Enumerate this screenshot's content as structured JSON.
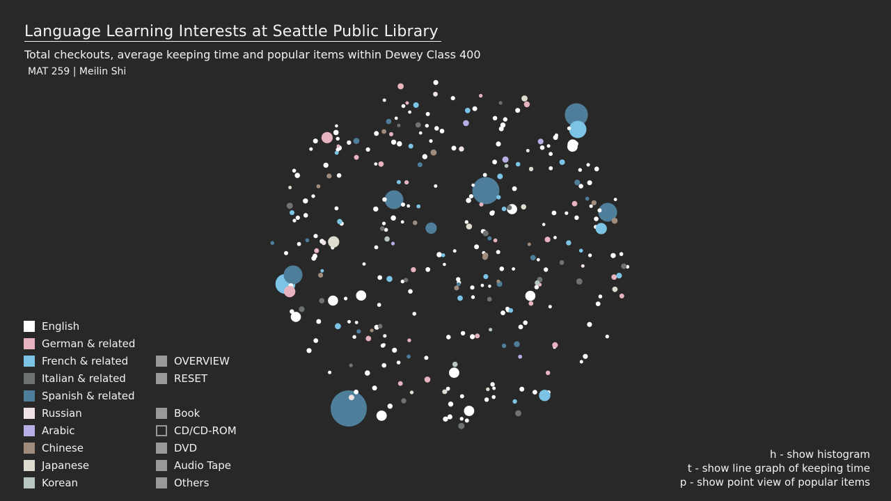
{
  "header": {
    "title": "Language Learning Interests at Seattle Public Library",
    "subtitle": "Total checkouts, average keeping time and popular items within Dewey Class 400",
    "course": "MAT 259 | Meilin Shi"
  },
  "colors": {
    "english": "#ffffff",
    "german": "#e6b3bf",
    "french": "#7cc4e6",
    "italian": "#6e7272",
    "spanish": "#4f7e9b",
    "russian": "#eee2e6",
    "arabic": "#b7aee6",
    "chinese": "#a08c7c",
    "japanese": "#dedbcf",
    "korean": "#b8c6c3",
    "control": "#999999"
  },
  "legend": {
    "languages": [
      {
        "label": "English",
        "color": "#ffffff"
      },
      {
        "label": "German & related",
        "color": "#e6b3bf"
      },
      {
        "label": "French & related",
        "color": "#7cc4e6"
      },
      {
        "label": "Italian & related",
        "color": "#6e7272"
      },
      {
        "label": "Spanish & related",
        "color": "#4f7e9b"
      },
      {
        "label": "Russian",
        "color": "#eee2e6"
      },
      {
        "label": "Arabic",
        "color": "#b7aee6"
      },
      {
        "label": "Chinese",
        "color": "#a08c7c"
      },
      {
        "label": "Japanese",
        "color": "#dedbcf"
      },
      {
        "label": "Korean",
        "color": "#b8c6c3"
      }
    ],
    "controls": [
      {
        "label": "OVERVIEW",
        "selected": true
      },
      {
        "label": "RESET",
        "selected": true
      }
    ],
    "media": [
      {
        "label": "Book",
        "selected": true
      },
      {
        "label": "CD/CD-ROM",
        "selected": false
      },
      {
        "label": "DVD",
        "selected": true
      },
      {
        "label": "Audio Tape",
        "selected": true
      },
      {
        "label": "Others",
        "selected": true
      }
    ]
  },
  "help": {
    "histogram": "h - show histogram",
    "line_graph": "t - show line graph of keeping time",
    "point_view": "p - show point view of popular items"
  },
  "bubble_cluster": {
    "large_bubbles": [
      {
        "language": "spanish",
        "relative_size": 1.0
      },
      {
        "language": "spanish",
        "relative_size": 0.75
      },
      {
        "language": "spanish",
        "relative_size": 0.64
      },
      {
        "language": "spanish",
        "relative_size": 0.52
      },
      {
        "language": "spanish",
        "relative_size": 0.52
      },
      {
        "language": "french",
        "relative_size": 0.55
      },
      {
        "language": "french",
        "relative_size": 0.48
      },
      {
        "language": "spanish",
        "relative_size": 0.52
      }
    ],
    "point_counts": {
      "english": 190,
      "german": 28,
      "french": 26,
      "italian": 20,
      "spanish": 16,
      "russian": 6,
      "arabic": 5,
      "chinese": 14,
      "japanese": 10,
      "korean": 5
    },
    "seed": 7
  }
}
